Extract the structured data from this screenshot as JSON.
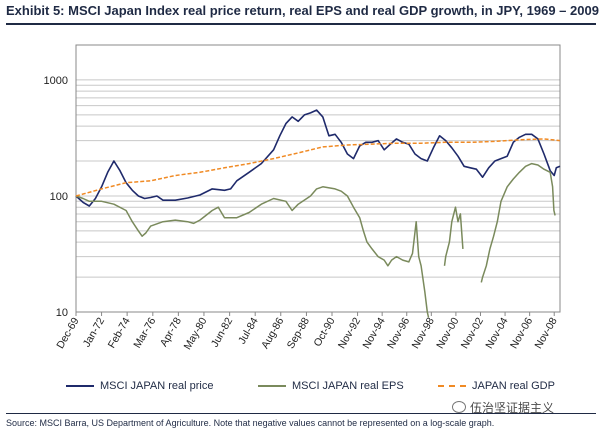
{
  "title": "Exhibit 5: MSCI Japan Index real price return, real EPS and real GDP growth, in JPY, 1969 – 2009",
  "source": "Source: MSCI Barra, US Department of Agriculture. Note that negative values cannot be represented on a log-scale graph.",
  "watermark": "伍治坚证据主义",
  "colors": {
    "price": "#1f2a6b",
    "eps": "#7a8a5c",
    "gdp": "#f08a24",
    "grid": "#c8c8c8"
  },
  "chart_data": {
    "type": "line",
    "yscale": "log",
    "ylim": [
      10,
      2000
    ],
    "yticks": [
      10,
      100,
      1000
    ],
    "xlim": [
      1969.92,
      2009.3
    ],
    "x_tick_labels": [
      "Dec-69",
      "Jan-72",
      "Feb-74",
      "Mar-76",
      "Apr-78",
      "May-80",
      "Jun-82",
      "Jul-84",
      "Aug-86",
      "Sep-88",
      "Oct-90",
      "Nov-92",
      "Nov-94",
      "Nov-96",
      "Nov-98",
      "Nov-00",
      "Nov-02",
      "Nov-04",
      "Nov-06",
      "Nov-08"
    ],
    "x_tick_values": [
      1969.92,
      1972.0,
      1974.08,
      1976.17,
      1978.25,
      1980.33,
      1982.42,
      1984.5,
      1986.58,
      1988.67,
      1990.75,
      1992.83,
      1994.83,
      1996.83,
      1998.83,
      2000.83,
      2002.83,
      2004.83,
      2006.83,
      2008.83
    ],
    "series": [
      {
        "name": "MSCI JAPAN real price",
        "key": "price",
        "points": [
          [
            1969.92,
            100
          ],
          [
            1970.5,
            88
          ],
          [
            1971.0,
            82
          ],
          [
            1971.5,
            95
          ],
          [
            1972.0,
            120
          ],
          [
            1972.5,
            160
          ],
          [
            1973.0,
            200
          ],
          [
            1973.5,
            165
          ],
          [
            1974.0,
            130
          ],
          [
            1974.5,
            112
          ],
          [
            1975.0,
            100
          ],
          [
            1975.5,
            95
          ],
          [
            1976.0,
            97
          ],
          [
            1976.5,
            100
          ],
          [
            1977.0,
            92
          ],
          [
            1978.0,
            92
          ],
          [
            1979.0,
            96
          ],
          [
            1980.0,
            102
          ],
          [
            1981.0,
            115
          ],
          [
            1982.0,
            112
          ],
          [
            1982.5,
            115
          ],
          [
            1983.0,
            135
          ],
          [
            1984.0,
            160
          ],
          [
            1985.0,
            190
          ],
          [
            1986.0,
            250
          ],
          [
            1986.5,
            330
          ],
          [
            1987.0,
            420
          ],
          [
            1987.5,
            480
          ],
          [
            1988.0,
            440
          ],
          [
            1988.5,
            500
          ],
          [
            1989.0,
            520
          ],
          [
            1989.5,
            550
          ],
          [
            1990.0,
            480
          ],
          [
            1990.5,
            330
          ],
          [
            1991.0,
            340
          ],
          [
            1991.5,
            290
          ],
          [
            1992.0,
            230
          ],
          [
            1992.5,
            210
          ],
          [
            1993.0,
            270
          ],
          [
            1993.5,
            290
          ],
          [
            1994.0,
            290
          ],
          [
            1994.5,
            300
          ],
          [
            1995.0,
            250
          ],
          [
            1995.5,
            280
          ],
          [
            1996.0,
            310
          ],
          [
            1996.5,
            290
          ],
          [
            1997.0,
            280
          ],
          [
            1997.5,
            230
          ],
          [
            1998.0,
            210
          ],
          [
            1998.5,
            200
          ],
          [
            1999.0,
            260
          ],
          [
            1999.5,
            330
          ],
          [
            2000.0,
            300
          ],
          [
            2000.5,
            260
          ],
          [
            2001.0,
            220
          ],
          [
            2001.5,
            180
          ],
          [
            2002.0,
            175
          ],
          [
            2002.5,
            170
          ],
          [
            2003.0,
            145
          ],
          [
            2003.5,
            175
          ],
          [
            2004.0,
            200
          ],
          [
            2004.5,
            210
          ],
          [
            2005.0,
            220
          ],
          [
            2005.5,
            290
          ],
          [
            2006.0,
            320
          ],
          [
            2006.5,
            340
          ],
          [
            2007.0,
            340
          ],
          [
            2007.5,
            310
          ],
          [
            2008.0,
            230
          ],
          [
            2008.5,
            165
          ],
          [
            2008.83,
            150
          ],
          [
            2009.0,
            175
          ],
          [
            2009.3,
            180
          ]
        ]
      },
      {
        "name": "MSCI JAPAN real EPS",
        "key": "eps",
        "segments": [
          [
            [
              1969.92,
              100
            ],
            [
              1970.5,
              95
            ],
            [
              1971.0,
              90
            ],
            [
              1972.0,
              90
            ],
            [
              1973.0,
              85
            ],
            [
              1974.0,
              75
            ],
            [
              1974.5,
              60
            ],
            [
              1975.0,
              50
            ],
            [
              1975.3,
              45
            ],
            [
              1975.6,
              48
            ],
            [
              1976.0,
              55
            ],
            [
              1977.0,
              60
            ],
            [
              1978.0,
              62
            ],
            [
              1979.0,
              60
            ],
            [
              1979.5,
              58
            ],
            [
              1980.0,
              62
            ],
            [
              1980.5,
              68
            ],
            [
              1981.0,
              75
            ],
            [
              1981.5,
              80
            ],
            [
              1982.0,
              65
            ],
            [
              1983.0,
              65
            ],
            [
              1984.0,
              72
            ],
            [
              1985.0,
              85
            ],
            [
              1986.0,
              95
            ],
            [
              1987.0,
              90
            ],
            [
              1987.5,
              75
            ],
            [
              1988.0,
              85
            ],
            [
              1989.0,
              100
            ],
            [
              1989.5,
              115
            ],
            [
              1990.0,
              120
            ],
            [
              1991.0,
              115
            ],
            [
              1991.5,
              110
            ],
            [
              1992.0,
              100
            ],
            [
              1992.5,
              80
            ],
            [
              1993.0,
              65
            ],
            [
              1993.3,
              50
            ],
            [
              1993.6,
              40
            ],
            [
              1994.0,
              35
            ],
            [
              1994.5,
              30
            ],
            [
              1995.0,
              28
            ],
            [
              1995.3,
              25
            ],
            [
              1995.6,
              28
            ],
            [
              1996.0,
              30
            ],
            [
              1996.5,
              28
            ],
            [
              1997.0,
              27
            ],
            [
              1997.3,
              32
            ],
            [
              1997.6,
              60
            ],
            [
              1997.8,
              30
            ],
            [
              1998.0,
              25
            ],
            [
              1998.3,
              15
            ],
            [
              1998.5,
              10
            ],
            [
              1998.6,
              9
            ]
          ],
          [
            [
              1999.9,
              25
            ],
            [
              2000.0,
              30
            ],
            [
              2000.3,
              40
            ],
            [
              2000.5,
              60
            ],
            [
              2000.8,
              80
            ],
            [
              2001.0,
              60
            ],
            [
              2001.2,
              70
            ],
            [
              2001.4,
              35
            ]
          ],
          [
            [
              2002.9,
              18
            ],
            [
              2003.0,
              20
            ],
            [
              2003.3,
              25
            ],
            [
              2003.6,
              35
            ],
            [
              2003.9,
              45
            ],
            [
              2004.2,
              60
            ],
            [
              2004.5,
              90
            ],
            [
              2005.0,
              120
            ],
            [
              2005.5,
              140
            ],
            [
              2006.0,
              160
            ],
            [
              2006.5,
              180
            ],
            [
              2007.0,
              190
            ],
            [
              2007.5,
              185
            ],
            [
              2008.0,
              170
            ],
            [
              2008.5,
              160
            ],
            [
              2008.7,
              120
            ],
            [
              2008.8,
              75
            ],
            [
              2008.9,
              68
            ]
          ]
        ]
      },
      {
        "name": "JAPAN real GDP",
        "key": "gdp",
        "points": [
          [
            1969.92,
            100
          ],
          [
            1972.0,
            115
          ],
          [
            1974.0,
            130
          ],
          [
            1976.0,
            135
          ],
          [
            1978.0,
            150
          ],
          [
            1980.0,
            160
          ],
          [
            1982.0,
            175
          ],
          [
            1984.0,
            190
          ],
          [
            1986.0,
            210
          ],
          [
            1988.0,
            235
          ],
          [
            1990.0,
            265
          ],
          [
            1992.0,
            275
          ],
          [
            1994.0,
            280
          ],
          [
            1996.0,
            285
          ],
          [
            1998.0,
            285
          ],
          [
            2000.0,
            290
          ],
          [
            2002.0,
            290
          ],
          [
            2004.0,
            295
          ],
          [
            2006.0,
            305
          ],
          [
            2008.0,
            310
          ],
          [
            2009.3,
            300
          ]
        ]
      }
    ],
    "legend": [
      "MSCI JAPAN real price",
      "MSCI JAPAN real EPS",
      "JAPAN real GDP"
    ],
    "legend_position": "bottom"
  }
}
